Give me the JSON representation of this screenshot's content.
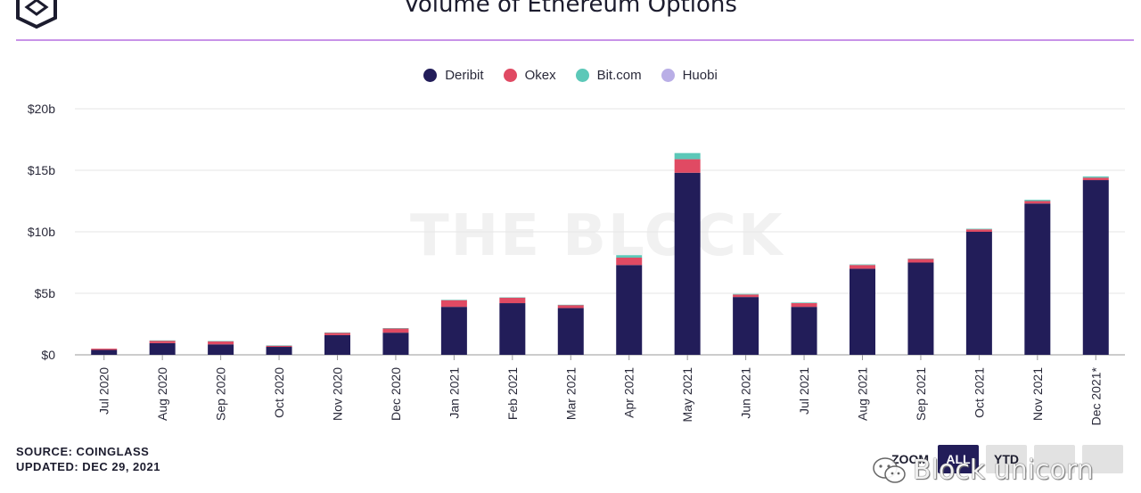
{
  "header": {
    "title": "Volume of Ethereum Options"
  },
  "colors": {
    "accent_rule": "#c893e8",
    "deribit": "#221d59",
    "okex": "#e04a63",
    "bitcom": "#5cc8b8",
    "huobi": "#b9aee6",
    "active_button": "#221d59"
  },
  "watermark": "THE BLOCK",
  "footer": {
    "source": "SOURCE: COINGLASS",
    "updated": "UPDATED: DEC 29, 2021"
  },
  "zoom": {
    "label": "ZOOM",
    "buttons": [
      "ALL",
      "YTD",
      "",
      ""
    ],
    "active": "ALL"
  },
  "wechat_watermark": "Block unicorn",
  "chart_data": {
    "type": "bar",
    "stacked": true,
    "title": "Volume of Ethereum Options",
    "xlabel": "",
    "ylabel": "",
    "ylim": [
      0,
      20
    ],
    "yticks": [
      "$0",
      "$5b",
      "$10b",
      "$15b",
      "$20b"
    ],
    "ytick_values": [
      0,
      5,
      10,
      15,
      20
    ],
    "grid": true,
    "legend_position": "top-center",
    "categories": [
      "Jul 2020",
      "Aug 2020",
      "Sep 2020",
      "Oct 2020",
      "Nov 2020",
      "Dec 2020",
      "Jan 2021",
      "Feb 2021",
      "Mar 2021",
      "Apr 2021",
      "May 2021",
      "Jun 2021",
      "Jul 2021",
      "Aug 2021",
      "Sep 2021",
      "Oct 2021",
      "Nov 2021",
      "Dec 2021*"
    ],
    "series": [
      {
        "name": "Deribit",
        "color": "#221d59",
        "values": [
          0.4,
          0.95,
          0.85,
          0.65,
          1.6,
          1.8,
          3.9,
          4.2,
          3.8,
          7.3,
          14.8,
          4.7,
          3.9,
          7.0,
          7.5,
          10.0,
          12.3,
          14.2
        ]
      },
      {
        "name": "Okex",
        "color": "#e04a63",
        "values": [
          0.1,
          0.2,
          0.25,
          0.1,
          0.2,
          0.35,
          0.55,
          0.45,
          0.25,
          0.6,
          1.1,
          0.2,
          0.3,
          0.3,
          0.3,
          0.2,
          0.2,
          0.2
        ]
      },
      {
        "name": "Bit.com",
        "color": "#5cc8b8",
        "values": [
          0,
          0.02,
          0.02,
          0.02,
          0.02,
          0.02,
          0.02,
          0.02,
          0.02,
          0.2,
          0.5,
          0.05,
          0.05,
          0.05,
          0.03,
          0.05,
          0.1,
          0.1
        ]
      },
      {
        "name": "Huobi",
        "color": "#b9aee6",
        "values": [
          0,
          0,
          0,
          0,
          0,
          0,
          0,
          0,
          0,
          0,
          0,
          0,
          0,
          0,
          0,
          0,
          0,
          0
        ]
      }
    ]
  }
}
